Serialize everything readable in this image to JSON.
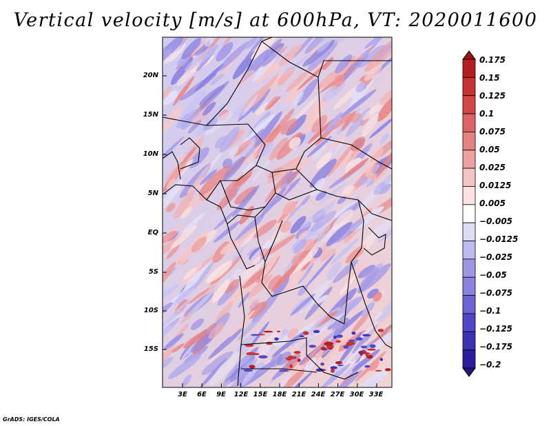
{
  "title": "Vertical velocity [m/s] at 600hPa, VT: 2020011600",
  "credit": "GrADS: IGES/COLA",
  "map": {
    "variable": "Vertical velocity",
    "units": "m/s",
    "level": "600hPa",
    "valid_time": "2020011600",
    "lat_ticks": [
      "20N",
      "15N",
      "10N",
      "5N",
      "EQ",
      "5S",
      "10S",
      "15S"
    ],
    "lon_ticks": [
      "3E",
      "6E",
      "9E",
      "12E",
      "15E",
      "18E",
      "21E",
      "24E",
      "27E",
      "30E",
      "33E"
    ]
  },
  "colorbar": {
    "labels": [
      "0.175",
      "0.15",
      "0.125",
      "0.1",
      "0.075",
      "0.05",
      "0.025",
      "0.0125",
      "0.005",
      "−0.005",
      "−0.0125",
      "−0.025",
      "−0.05",
      "−0.075",
      "−0.1",
      "−0.125",
      "−0.175",
      "−0.2"
    ],
    "colors": [
      "#a00f14",
      "#b41e1e",
      "#c83232",
      "#d24646",
      "#dc6464",
      "#e68282",
      "#f0a0a0",
      "#f5c3c3",
      "#fbe1e1",
      "#ffffff",
      "#dcdcf5",
      "#beb9f0",
      "#a096e6",
      "#8c82e1",
      "#6e64d7",
      "#5046c8",
      "#3c32b4",
      "#2d1ea0",
      "#1e1482"
    ]
  }
}
